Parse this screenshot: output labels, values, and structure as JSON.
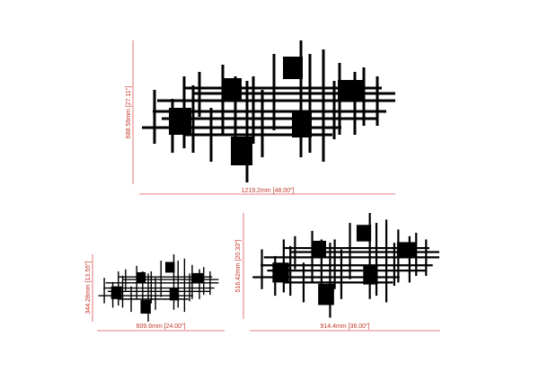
{
  "views": [
    {
      "height": "688.56mm [27.11\"]",
      "width": "1219.2mm [48.00\"]"
    },
    {
      "height": "344.28mm [13.55\"]",
      "width": "609.6mm [24.00\"]"
    },
    {
      "height": "516.42mm [20.33\"]",
      "width": "914.4mm [36.00\"]"
    }
  ]
}
